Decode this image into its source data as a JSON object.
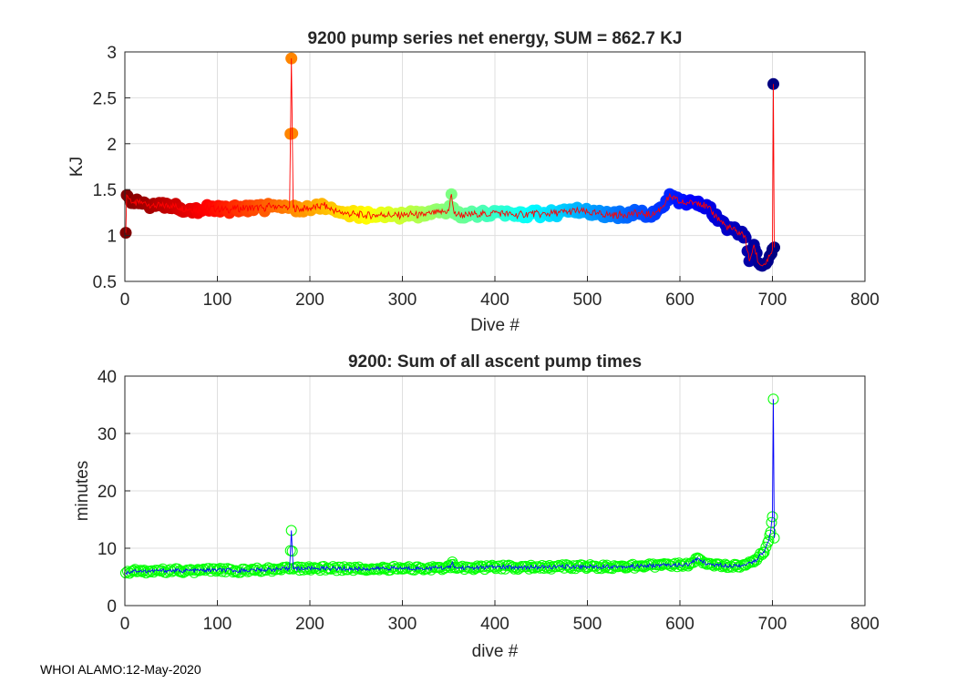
{
  "chart_data": [
    {
      "type": "scatter",
      "title": "9200 pump series net energy, SUM = 862.7 KJ",
      "xlabel": "Dive #",
      "ylabel": "KJ",
      "xlim": [
        0,
        800
      ],
      "ylim": [
        0.5,
        3
      ],
      "xticks": [
        "0",
        "100",
        "200",
        "300",
        "400",
        "500",
        "600",
        "700",
        "800"
      ],
      "yticks": [
        "0.5",
        "1",
        "1.5",
        "2",
        "2.5",
        "3"
      ],
      "grid": true,
      "colormap": "jet (dark red at dive 0 to dark blue at dive 700)",
      "line_color": "#ff0000",
      "series": [
        {
          "name": "net energy",
          "x": [
            1,
            2,
            5,
            10,
            20,
            30,
            40,
            50,
            60,
            70,
            80,
            90,
            100,
            110,
            120,
            130,
            140,
            150,
            160,
            170,
            178,
            180,
            182,
            190,
            200,
            210,
            215,
            220,
            230,
            240,
            250,
            260,
            270,
            280,
            290,
            300,
            310,
            320,
            330,
            340,
            350,
            353,
            356,
            360,
            370,
            380,
            390,
            400,
            410,
            420,
            430,
            440,
            450,
            460,
            470,
            480,
            490,
            500,
            510,
            520,
            530,
            540,
            550,
            560,
            570,
            580,
            585,
            590,
            595,
            600,
            610,
            620,
            630,
            640,
            650,
            660,
            670,
            675,
            680,
            685,
            690,
            695,
            700,
            701,
            702
          ],
          "y": [
            1.03,
            1.44,
            1.4,
            1.35,
            1.36,
            1.33,
            1.32,
            1.33,
            1.3,
            1.29,
            1.28,
            1.3,
            1.29,
            1.28,
            1.29,
            1.3,
            1.3,
            1.3,
            1.33,
            1.3,
            1.31,
            2.93,
            1.3,
            1.29,
            1.3,
            1.31,
            1.33,
            1.3,
            1.26,
            1.24,
            1.23,
            1.22,
            1.22,
            1.23,
            1.22,
            1.22,
            1.23,
            1.22,
            1.24,
            1.25,
            1.27,
            1.45,
            1.24,
            1.23,
            1.22,
            1.24,
            1.23,
            1.25,
            1.24,
            1.22,
            1.23,
            1.24,
            1.23,
            1.24,
            1.25,
            1.26,
            1.27,
            1.25,
            1.24,
            1.23,
            1.22,
            1.23,
            1.24,
            1.24,
            1.22,
            1.3,
            1.38,
            1.42,
            1.4,
            1.36,
            1.35,
            1.37,
            1.3,
            1.2,
            1.1,
            1.05,
            1.0,
            0.72,
            0.9,
            0.7,
            0.68,
            0.72,
            0.85,
            2.65,
            0.87
          ]
        }
      ]
    },
    {
      "type": "scatter",
      "title": "9200: Sum of all ascent pump times",
      "xlabel": "dive #",
      "ylabel": "minutes",
      "xlim": [
        0,
        800
      ],
      "ylim": [
        0,
        40
      ],
      "xticks": [
        "0",
        "100",
        "200",
        "300",
        "400",
        "500",
        "600",
        "700",
        "800"
      ],
      "yticks": [
        "0",
        "10",
        "20",
        "30",
        "40"
      ],
      "grid": true,
      "marker_color": "#00ff00",
      "line_color": "#0000ff",
      "series": [
        {
          "name": "ascent pump minutes",
          "x": [
            1,
            10,
            20,
            40,
            60,
            80,
            100,
            120,
            140,
            160,
            178,
            180,
            182,
            200,
            220,
            240,
            260,
            280,
            300,
            320,
            340,
            352,
            354,
            356,
            380,
            400,
            420,
            440,
            460,
            480,
            500,
            520,
            540,
            560,
            580,
            600,
            610,
            620,
            630,
            640,
            650,
            660,
            670,
            680,
            685,
            690,
            693,
            696,
            698,
            700,
            701,
            702
          ],
          "y": [
            5.7,
            6.1,
            6.0,
            6.1,
            6.1,
            6.1,
            6.2,
            6.1,
            6.2,
            6.3,
            6.4,
            13.1,
            6.4,
            6.5,
            6.5,
            6.4,
            6.4,
            6.5,
            6.5,
            6.5,
            6.6,
            6.6,
            7.6,
            6.6,
            6.6,
            6.7,
            6.7,
            6.7,
            6.7,
            6.8,
            6.8,
            6.8,
            6.8,
            6.9,
            7.0,
            7.1,
            7.2,
            8.2,
            7.2,
            7.1,
            7.0,
            7.0,
            7.1,
            7.6,
            8.5,
            9.3,
            10.2,
            11.3,
            12.8,
            15.5,
            36.0,
            11.8
          ]
        }
      ]
    }
  ],
  "footer": "WHOI ALAMO:12-May-2020"
}
